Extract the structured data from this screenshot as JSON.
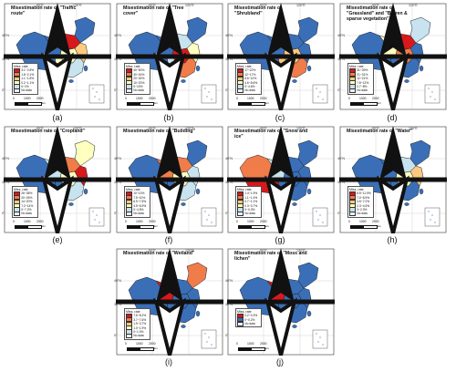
{
  "common": {
    "legend_title": "Miss. rate",
    "scale_left": "0",
    "scale_mid": "1000",
    "scale_right": "2000",
    "scale_unit": "km",
    "lat_labels": [
      "40°N",
      "30°N",
      "0°"
    ],
    "lon_labels": [
      "90°E",
      "120°E"
    ]
  },
  "colors": {
    "ramp": [
      "#d7191c",
      "#f07c4a",
      "#fec980",
      "#ffffbf",
      "#c7e3ef",
      "#3a6fb8"
    ],
    "no_data": "#eeeeee",
    "sea": "#ffffff",
    "border": "#222222"
  },
  "panels": [
    {
      "label": "(a)",
      "title": "Misestimation rate of \"Traffic route\"",
      "legend": [
        "3.1~2.8%",
        "1.8~2.1%",
        "1.1~1.8%",
        "0.2~1.1%",
        "0~1%",
        "No data"
      ],
      "region_classes": {
        "east": 2,
        "north": 0,
        "northeast": 5,
        "center": 3,
        "south": 4,
        "west": 5,
        "southwest": 3,
        "xinjiang": 5,
        "tibet": 5
      }
    },
    {
      "label": "(b)",
      "title": "Misestimation rate of \"Tree cover\"",
      "legend": [
        "40~50%",
        "30~40%",
        "20~30%",
        "10~20%",
        "0~10%",
        "No data"
      ],
      "region_classes": {
        "east": 3,
        "north": 4,
        "northeast": 5,
        "center": 0,
        "south": 1,
        "west": 5,
        "southwest": 4,
        "xinjiang": 5,
        "tibet": 5
      }
    },
    {
      "label": "(c)",
      "title": "Misestimation rate of \"Shrubland\"",
      "legend": [
        "17~22%",
        "12~17%",
        "8.6~12%",
        "4.6~8.6%",
        "0~4.6%",
        "No data"
      ],
      "region_classes": {
        "east": 5,
        "north": 5,
        "northeast": 5,
        "center": 2,
        "south": 1,
        "west": 5,
        "southwest": 2,
        "xinjiang": 5,
        "tibet": 5
      }
    },
    {
      "label": "(d)",
      "title": "Misestimation rate of \"Grassland\" and \"Barren & sparse vegetation\"",
      "legend": [
        "31~39%",
        "21~31%",
        "12~21%",
        "7.8~12%",
        "0.7~8%",
        "No data"
      ],
      "region_classes": {
        "east": 5,
        "north": 0,
        "northeast": 4,
        "center": 1,
        "south": 5,
        "west": 3,
        "southwest": 5,
        "xinjiang": 5,
        "tibet": 5
      }
    },
    {
      "label": "(e)",
      "title": "Misestimation rate of \"Cropland\"",
      "legend": [
        "26~38%",
        "20~26%",
        "14~20%",
        "7.2~14%",
        "0~7.2%",
        "No data"
      ],
      "region_classes": {
        "east": 0,
        "north": 1,
        "northeast": 3,
        "center": 3,
        "south": 4,
        "west": 4,
        "southwest": 5,
        "xinjiang": 5,
        "tibet": 5
      }
    },
    {
      "label": "(f)",
      "title": "Misestimation rate of \"Building\"",
      "legend": [
        "10~13%",
        "7.5~10%",
        "6.9~7.5%",
        "4.5~6.9%",
        "0~4.5%",
        "No data"
      ],
      "region_classes": {
        "east": 4,
        "north": 1,
        "northeast": 5,
        "center": 3,
        "south": 4,
        "west": 1,
        "southwest": 5,
        "xinjiang": 5,
        "tibet": 5
      }
    },
    {
      "label": "(g)",
      "title": "Misestimation rate of \"Snow and ice\"",
      "legend": [
        "1.4~1.9%",
        "1.1~1.4%",
        "0.7~1.1%",
        "0.3~0.7%",
        "0~0.3%",
        "No data"
      ],
      "region_classes": {
        "east": 5,
        "north": 5,
        "northeast": 5,
        "center": 5,
        "south": 5,
        "west": 4,
        "southwest": 5,
        "xinjiang": 1,
        "tibet": 0
      }
    },
    {
      "label": "(h)",
      "title": "Misestimation rate of \"Water\"",
      "legend": [
        "8.5~11.9%",
        "7.0~8.5%",
        "4.6~7.0%",
        "2.3~4.6%",
        "0~2.3%",
        "No data"
      ],
      "region_classes": {
        "east": 2,
        "north": 4,
        "northeast": 5,
        "center": 3,
        "south": 5,
        "west": 5,
        "southwest": 5,
        "xinjiang": 5,
        "tibet": 5
      }
    },
    {
      "label": "(i)",
      "title": "Misestimation rate of \"Wetland\"",
      "legend": [
        "7.6~8.2%",
        "3.7~7.6%",
        "1.9~3.7%",
        "1.0~1.9%",
        "0~1.0%",
        "No data"
      ],
      "region_classes": {
        "east": 5,
        "north": 5,
        "northeast": 1,
        "center": 5,
        "south": 5,
        "west": 0,
        "southwest": 5,
        "xinjiang": 5,
        "tibet": 5
      }
    },
    {
      "label": "(j)",
      "title": "Misestimation rate of \"Moss and lichen\"",
      "legend": [
        "0.2~0.3%",
        "0~0.2%",
        "No data"
      ],
      "region_classes": {
        "east": 5,
        "north": 5,
        "northeast": 5,
        "center": 5,
        "south": 5,
        "west": 0,
        "southwest": 5,
        "xinjiang": 5,
        "tibet": 5
      }
    }
  ]
}
